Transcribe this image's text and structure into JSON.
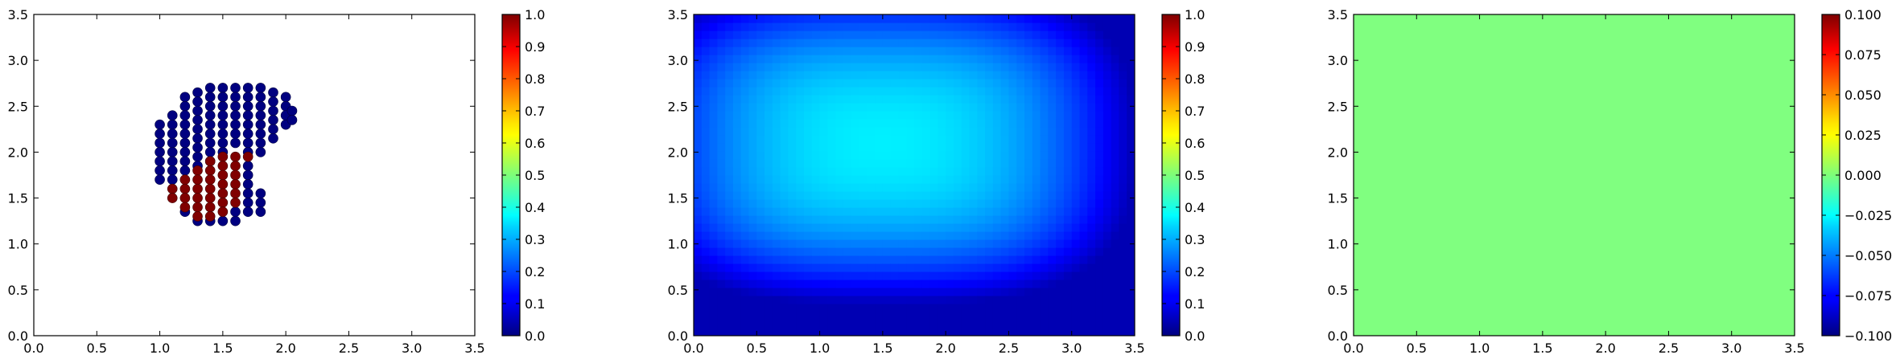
{
  "colormap": "jet",
  "chart_data": [
    {
      "type": "scatter",
      "marker_color_range": [
        0,
        1
      ],
      "xlim": [
        0,
        3.5
      ],
      "ylim": [
        0,
        3.5
      ],
      "xticks": [
        "0.0",
        "0.5",
        "1.0",
        "1.5",
        "2.0",
        "2.5",
        "3.0",
        "3.5"
      ],
      "yticks": [
        "0.0",
        "0.5",
        "1.0",
        "1.5",
        "2.0",
        "2.5",
        "3.0",
        "3.5"
      ],
      "colorbar": {
        "range": [
          0,
          1
        ],
        "ticks": [
          "0.0",
          "0.1",
          "0.2",
          "0.3",
          "0.4",
          "0.5",
          "0.6",
          "0.7",
          "0.8",
          "0.9",
          "1.0"
        ]
      },
      "points_value_0": [
        [
          1.0,
          2.3
        ],
        [
          1.0,
          2.2
        ],
        [
          1.0,
          2.1
        ],
        [
          1.0,
          2.0
        ],
        [
          1.0,
          1.9
        ],
        [
          1.0,
          1.8
        ],
        [
          1.0,
          1.7
        ],
        [
          1.1,
          2.4
        ],
        [
          1.1,
          2.3
        ],
        [
          1.1,
          2.2
        ],
        [
          1.1,
          2.1
        ],
        [
          1.1,
          2.0
        ],
        [
          1.1,
          1.9
        ],
        [
          1.1,
          1.8
        ],
        [
          1.1,
          1.7
        ],
        [
          1.2,
          2.6
        ],
        [
          1.2,
          2.5
        ],
        [
          1.2,
          2.4
        ],
        [
          1.2,
          2.3
        ],
        [
          1.2,
          2.2
        ],
        [
          1.2,
          2.1
        ],
        [
          1.2,
          2.0
        ],
        [
          1.2,
          1.9
        ],
        [
          1.2,
          1.8
        ],
        [
          1.3,
          2.65
        ],
        [
          1.3,
          2.55
        ],
        [
          1.3,
          2.45
        ],
        [
          1.3,
          2.35
        ],
        [
          1.3,
          2.25
        ],
        [
          1.3,
          2.15
        ],
        [
          1.3,
          2.05
        ],
        [
          1.3,
          1.95
        ],
        [
          1.3,
          1.85
        ],
        [
          1.4,
          2.7
        ],
        [
          1.4,
          2.6
        ],
        [
          1.4,
          2.5
        ],
        [
          1.4,
          2.4
        ],
        [
          1.4,
          2.3
        ],
        [
          1.4,
          2.2
        ],
        [
          1.4,
          2.1
        ],
        [
          1.4,
          2.0
        ],
        [
          1.4,
          1.9
        ],
        [
          1.5,
          2.7
        ],
        [
          1.5,
          2.6
        ],
        [
          1.5,
          2.5
        ],
        [
          1.5,
          2.4
        ],
        [
          1.5,
          2.3
        ],
        [
          1.5,
          2.2
        ],
        [
          1.5,
          2.1
        ],
        [
          1.5,
          2.0
        ],
        [
          1.6,
          2.7
        ],
        [
          1.6,
          2.6
        ],
        [
          1.6,
          2.5
        ],
        [
          1.6,
          2.4
        ],
        [
          1.6,
          2.3
        ],
        [
          1.6,
          2.2
        ],
        [
          1.6,
          2.1
        ],
        [
          1.7,
          2.7
        ],
        [
          1.7,
          2.6
        ],
        [
          1.7,
          2.5
        ],
        [
          1.7,
          2.4
        ],
        [
          1.7,
          2.3
        ],
        [
          1.7,
          2.2
        ],
        [
          1.7,
          2.1
        ],
        [
          1.7,
          2.0
        ],
        [
          1.8,
          2.7
        ],
        [
          1.8,
          2.6
        ],
        [
          1.8,
          2.5
        ],
        [
          1.8,
          2.4
        ],
        [
          1.8,
          2.3
        ],
        [
          1.8,
          2.2
        ],
        [
          1.8,
          2.1
        ],
        [
          1.8,
          2.0
        ],
        [
          1.9,
          2.65
        ],
        [
          1.9,
          2.55
        ],
        [
          1.9,
          2.45
        ],
        [
          1.9,
          2.35
        ],
        [
          1.9,
          2.25
        ],
        [
          1.9,
          2.15
        ],
        [
          2.0,
          2.6
        ],
        [
          2.0,
          2.5
        ],
        [
          2.0,
          2.4
        ],
        [
          2.0,
          2.3
        ],
        [
          2.05,
          2.45
        ],
        [
          2.05,
          2.35
        ],
        [
          1.7,
          1.85
        ],
        [
          1.7,
          1.75
        ],
        [
          1.7,
          1.65
        ],
        [
          1.7,
          1.55
        ],
        [
          1.7,
          1.45
        ],
        [
          1.7,
          1.35
        ],
        [
          1.8,
          1.55
        ],
        [
          1.8,
          1.45
        ],
        [
          1.8,
          1.35
        ],
        [
          1.6,
          1.25
        ],
        [
          1.6,
          1.35
        ],
        [
          1.5,
          1.25
        ],
        [
          1.4,
          1.25
        ],
        [
          1.3,
          1.25
        ],
        [
          1.2,
          1.35
        ]
      ],
      "points_value_1": [
        [
          1.1,
          1.6
        ],
        [
          1.1,
          1.5
        ],
        [
          1.2,
          1.7
        ],
        [
          1.2,
          1.6
        ],
        [
          1.2,
          1.5
        ],
        [
          1.2,
          1.4
        ],
        [
          1.3,
          1.8
        ],
        [
          1.3,
          1.7
        ],
        [
          1.3,
          1.6
        ],
        [
          1.3,
          1.5
        ],
        [
          1.3,
          1.4
        ],
        [
          1.3,
          1.3
        ],
        [
          1.4,
          1.9
        ],
        [
          1.4,
          1.8
        ],
        [
          1.4,
          1.7
        ],
        [
          1.4,
          1.6
        ],
        [
          1.4,
          1.5
        ],
        [
          1.4,
          1.4
        ],
        [
          1.4,
          1.3
        ],
        [
          1.5,
          1.95
        ],
        [
          1.5,
          1.85
        ],
        [
          1.5,
          1.75
        ],
        [
          1.5,
          1.65
        ],
        [
          1.5,
          1.55
        ],
        [
          1.5,
          1.45
        ],
        [
          1.5,
          1.35
        ],
        [
          1.6,
          1.95
        ],
        [
          1.6,
          1.85
        ],
        [
          1.6,
          1.75
        ],
        [
          1.6,
          1.65
        ],
        [
          1.6,
          1.55
        ],
        [
          1.6,
          1.45
        ],
        [
          1.7,
          1.95
        ]
      ]
    },
    {
      "type": "heatmap",
      "xlim": [
        0,
        3.5
      ],
      "ylim": [
        0,
        3.5
      ],
      "xticks": [
        "0.0",
        "0.5",
        "1.0",
        "1.5",
        "2.0",
        "2.5",
        "3.0",
        "3.5"
      ],
      "yticks": [
        "0.0",
        "0.5",
        "1.0",
        "1.5",
        "2.0",
        "2.5",
        "3.0",
        "3.5"
      ],
      "value_range": [
        0,
        0.4
      ],
      "field": {
        "center": [
          1.5,
          2.1
        ],
        "peak_value": 0.36,
        "edge_value": 0.05
      },
      "colorbar": {
        "range": [
          0,
          1
        ],
        "ticks": [
          "0.0",
          "0.1",
          "0.2",
          "0.3",
          "0.4",
          "0.5",
          "0.6",
          "0.7",
          "0.8",
          "0.9",
          "1.0"
        ]
      }
    },
    {
      "type": "heatmap",
      "xlim": [
        0,
        3.5
      ],
      "ylim": [
        0,
        3.5
      ],
      "xticks": [
        "0.0",
        "0.5",
        "1.0",
        "1.5",
        "2.0",
        "2.5",
        "3.0",
        "3.5"
      ],
      "yticks": [
        "0.0",
        "0.5",
        "1.0",
        "1.5",
        "2.0",
        "2.5",
        "3.0",
        "3.5"
      ],
      "uniform_value": 0.0,
      "colorbar": {
        "range": [
          -0.1,
          0.1
        ],
        "ticks": [
          "−0.100",
          "−0.075",
          "−0.050",
          "−0.025",
          "0.000",
          "0.025",
          "0.050",
          "0.075",
          "0.100"
        ]
      }
    }
  ]
}
